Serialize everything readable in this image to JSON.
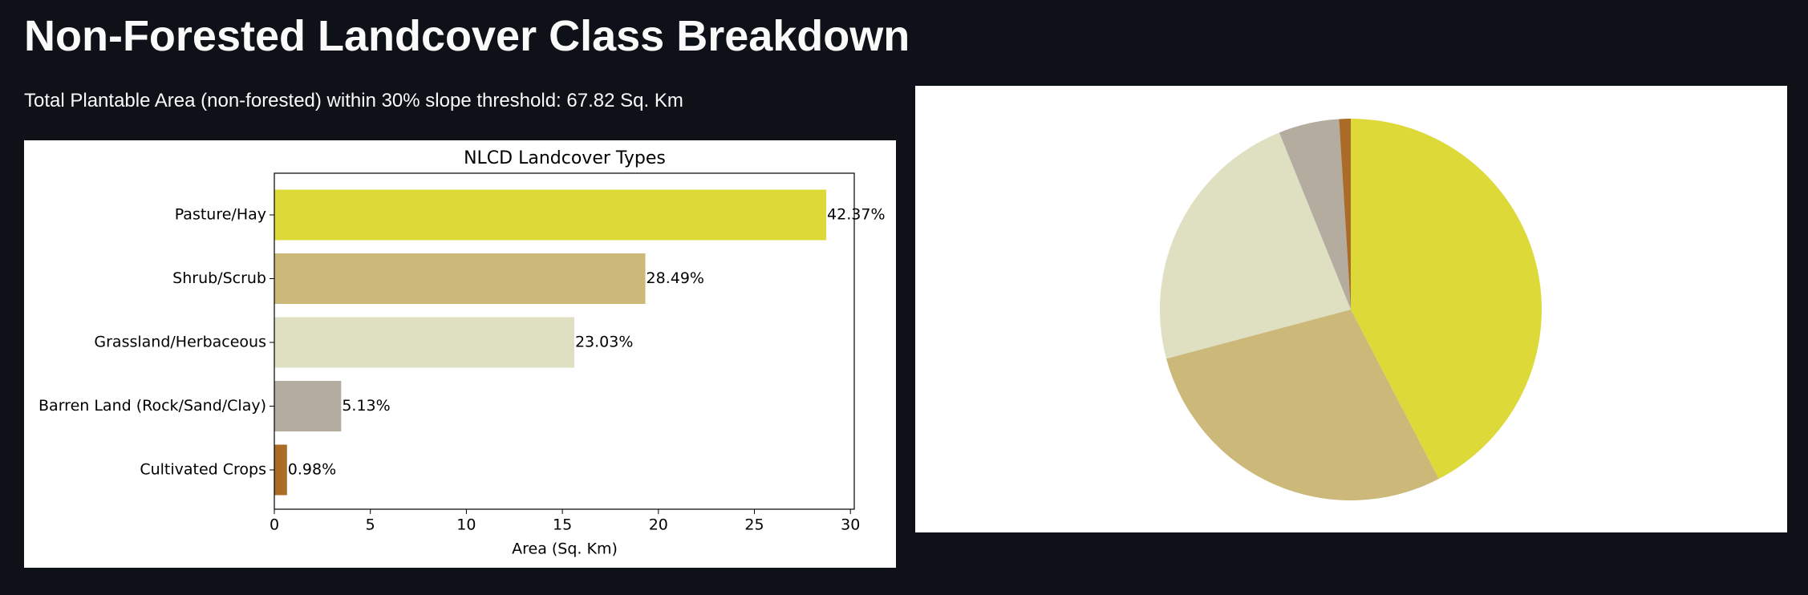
{
  "title": "Non-Forested Landcover Class Breakdown",
  "subtitle": "Total Plantable Area (non-forested) within 30% slope threshold: 67.82 Sq. Km",
  "chart_data": [
    {
      "type": "bar",
      "title": "NLCD Landcover Types",
      "xlabel": "Area (Sq. Km)",
      "categories": [
        "Pasture/Hay",
        "Shrub/Scrub",
        "Grassland/Herbaceous",
        "Barren Land (Rock/Sand/Clay)",
        "Cultivated Crops"
      ],
      "values": [
        28.74,
        19.32,
        15.62,
        3.48,
        0.66
      ],
      "percent_labels": [
        "42.37%",
        "28.49%",
        "23.03%",
        "5.13%",
        "0.98%"
      ],
      "colors": [
        "#dcd939",
        "#ccb879",
        "#dfdfc2",
        "#b3ac9f",
        "#ab6c28"
      ],
      "xlim": [
        0,
        30.2
      ],
      "xticks": [
        0,
        5,
        10,
        15,
        20,
        25,
        30
      ]
    },
    {
      "type": "pie",
      "values": [
        42.37,
        28.49,
        23.03,
        5.13,
        0.98
      ],
      "colors": [
        "#dcd939",
        "#ccb879",
        "#dfdfc2",
        "#b3ac9f",
        "#ab6c28"
      ]
    }
  ]
}
